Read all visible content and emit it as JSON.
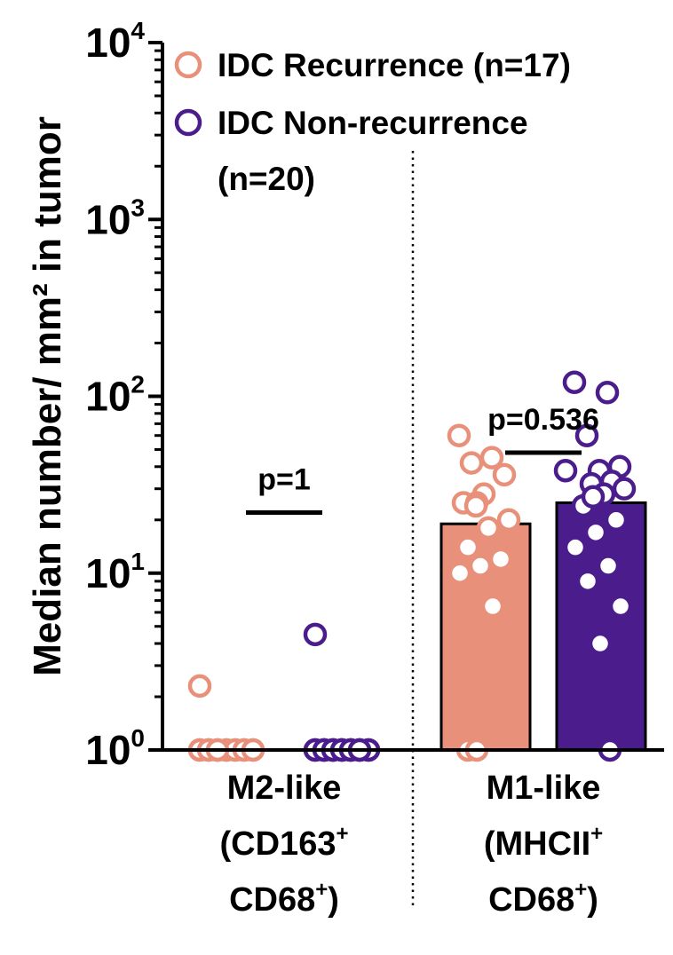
{
  "chart_data": {
    "type": "bar",
    "yscale": "log",
    "ylim": [
      1,
      10000
    ],
    "ylabel": "Median number/ mm² in tumor",
    "yticks": [
      {
        "base": "10",
        "exp": "0"
      },
      {
        "base": "10",
        "exp": "1"
      },
      {
        "base": "10",
        "exp": "2"
      },
      {
        "base": "10",
        "exp": "3"
      },
      {
        "base": "10",
        "exp": "4"
      }
    ],
    "categories": [
      {
        "lines": [
          {
            "text": "M2-like"
          },
          {
            "text": "(CD163",
            "sup": "+"
          },
          {
            "text": "CD68",
            "sup": "+",
            "tail": ")"
          }
        ]
      },
      {
        "lines": [
          {
            "text": "M1-like"
          },
          {
            "text": "(MHCII",
            "sup": "+"
          },
          {
            "text": "CD68",
            "sup": "+",
            "tail": ")"
          }
        ]
      }
    ],
    "series": [
      {
        "name": "IDC Recurrence (n=17)",
        "color": "#e8907a",
        "bar_values": [
          1,
          19
        ],
        "points": [
          [
            2.3,
            1,
            1,
            1,
            1,
            1,
            1,
            1,
            1,
            1,
            1,
            1,
            1,
            1,
            1,
            1,
            1
          ],
          [
            60,
            45,
            42,
            36,
            28,
            25,
            25,
            24,
            20,
            18,
            14,
            12,
            11,
            10,
            6.5,
            1,
            1
          ]
        ]
      },
      {
        "name": "IDC Non-recurrence",
        "name_line2": "(n=20)",
        "color": "#4b1d8c",
        "bar_values": [
          1,
          25
        ],
        "points": [
          [
            4.5,
            1,
            1,
            1,
            1,
            1,
            1,
            1,
            1,
            1,
            1,
            1,
            1,
            1,
            1,
            1,
            1,
            1,
            1,
            1
          ],
          [
            120,
            105,
            60,
            40,
            38,
            38,
            33,
            32,
            30,
            28,
            24,
            20,
            17,
            14,
            11,
            9,
            6.5,
            4,
            1,
            27
          ]
        ]
      }
    ],
    "annotations": [
      {
        "text": "p=1",
        "category_index": 0,
        "y": 22
      },
      {
        "text": "p=0.536",
        "category_index": 1,
        "y": 48
      }
    ],
    "legend_position": "top-left"
  }
}
